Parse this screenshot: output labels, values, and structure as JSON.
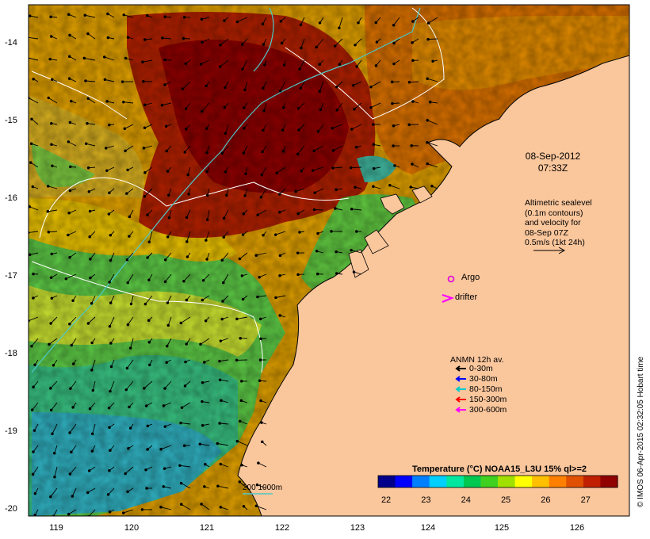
{
  "map": {
    "y_ticks": [
      "-14",
      "-15",
      "-16",
      "-17",
      "-18",
      "-19",
      "-20"
    ],
    "x_ticks": [
      "119",
      "120",
      "121",
      "122",
      "123",
      "124",
      "125",
      "126"
    ],
    "lon_range": [
      118.6,
      126.7
    ],
    "lat_range": [
      -13.6,
      -20.1
    ]
  },
  "datetime": {
    "date": "08-Sep-2012",
    "time": "07:33Z"
  },
  "altimetry": {
    "lines": [
      "Altimetric sealevel",
      "(0.1m contours)",
      "and velocity for",
      "08-Sep 07Z",
      "0.5m/s (1kt 24h)"
    ]
  },
  "markers": {
    "argo_label": "Argo",
    "drifter_label": "drifter",
    "argo_color": "#dd00dd",
    "drifter_color": "#ff00ff"
  },
  "anmn": {
    "title": "ANMN 12h av.",
    "items": [
      {
        "label": "0-30m",
        "color": "#000000"
      },
      {
        "label": "30-80m",
        "color": "#0000ff"
      },
      {
        "label": "80-150m",
        "color": "#00cccc"
      },
      {
        "label": "150-300m",
        "color": "#ff0000"
      },
      {
        "label": "300-600m",
        "color": "#ff00ff"
      }
    ]
  },
  "scale": {
    "label": "200  1000m"
  },
  "colorbar": {
    "title": "Temperature (°C) NOAA15_L3U 15% ql>=2",
    "ticks": [
      "22",
      "23",
      "24",
      "25",
      "26",
      "27"
    ],
    "range": [
      21.8,
      27.8
    ],
    "colors": [
      "#00008b",
      "#0000ff",
      "#0080ff",
      "#00d0ff",
      "#00e8a0",
      "#00c850",
      "#40d020",
      "#a0e000",
      "#ffff00",
      "#ffc000",
      "#ff8000",
      "#e05000",
      "#c02000",
      "#900000"
    ]
  },
  "credit": "© IMOS 06-Apr-2015 02:32:05 Hobart time",
  "colors": {
    "land": "#fac69c",
    "coast": "#000000",
    "contour_200m": "#ffffff",
    "contour_1000m": "#4dc9c9"
  }
}
